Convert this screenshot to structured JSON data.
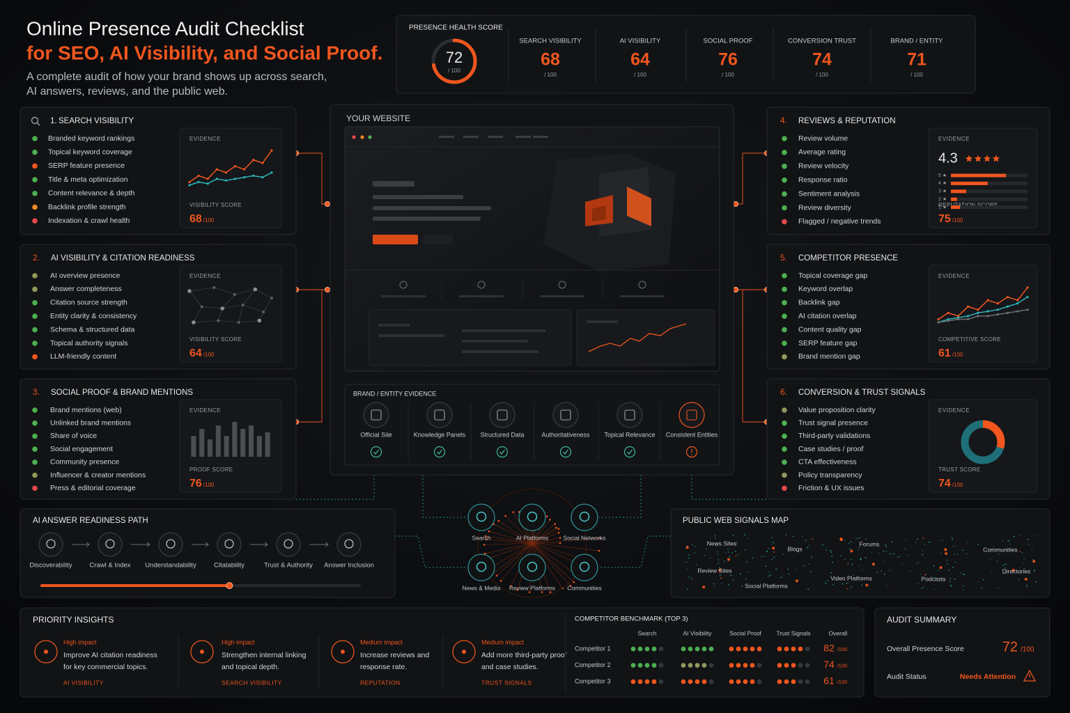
{
  "header": {
    "title_line1": "Online Presence Audit Checklist",
    "title_line2": "for SEO, AI Visibility, and Social Proof.",
    "subtitle_lines": [
      "A complete audit of how your brand shows up across search,",
      "AI answers, reviews, and the public web."
    ]
  },
  "health": {
    "label": "PRESENCE HEALTH SCORE",
    "score": 72,
    "max": {
      "value": 100,
      "label": "/ 100"
    },
    "metrics": [
      {
        "label": "SEARCH VISIBILITY",
        "score": 68,
        "max": "/ 100"
      },
      {
        "label": "AI VISIBILITY",
        "score": 64,
        "max": "/ 100"
      },
      {
        "label": "SOCIAL PROOF",
        "score": 76,
        "max": "/ 100"
      },
      {
        "label": "CONVERSION TRUST",
        "score": 74,
        "max": "/ 100"
      },
      {
        "label": "BRAND / ENTITY",
        "score": 71,
        "max": "/ 100"
      }
    ]
  },
  "sections": [
    {
      "number": "1.",
      "title": "SEARCH VISIBILITY",
      "items": [
        {
          "label": "Branded keyword rankings",
          "color": "#4caf50"
        },
        {
          "label": "Topical keyword coverage",
          "color": "#4caf50"
        },
        {
          "label": "SERP feature presence",
          "color": "#f0561e"
        },
        {
          "label": "Title & meta optimization",
          "color": "#4caf50"
        },
        {
          "label": "Content relevance & depth",
          "color": "#4caf50"
        },
        {
          "label": "Backlink profile strength",
          "color": "#f08a24"
        },
        {
          "label": "Indexation & crawl health",
          "color": "#e5484d"
        }
      ],
      "evidence_label": "EVIDENCE",
      "score_label": "VISIBILITY SCORE",
      "score": 68,
      "score_max": "/100",
      "chart": {
        "type": "line",
        "series": [
          {
            "color": "#f0561e",
            "values": [
              2,
              4,
              3,
              6,
              5,
              7,
              6,
              9,
              8,
              12
            ]
          },
          {
            "color": "#2bb3b8",
            "values": [
              1,
              2,
              1.5,
              3,
              2.5,
              3,
              3.5,
              4,
              3.5,
              5
            ]
          }
        ]
      }
    },
    {
      "number": "2.",
      "title": "AI VISIBILITY & CITATION READINESS",
      "items": [
        {
          "label": "AI overview presence",
          "color": "#8f9a5b"
        },
        {
          "label": "Answer completeness",
          "color": "#8f9a5b"
        },
        {
          "label": "Citation source strength",
          "color": "#4caf50"
        },
        {
          "label": "Entity clarity & consistency",
          "color": "#4caf50"
        },
        {
          "label": "Schema & structured data",
          "color": "#4caf50"
        },
        {
          "label": "Topical authority signals",
          "color": "#4caf50"
        },
        {
          "label": "LLM-friendly content",
          "color": "#f0561e"
        }
      ],
      "evidence_label": "EVIDENCE",
      "score_label": "VISIBILITY SCORE",
      "score": 64,
      "score_max": "/100",
      "chart": {
        "type": "network"
      }
    },
    {
      "number": "3.",
      "title": "SOCIAL PROOF & BRAND MENTIONS",
      "items": [
        {
          "label": "Brand mentions (web)",
          "color": "#4caf50"
        },
        {
          "label": "Unlinked brand mentions",
          "color": "#4caf50"
        },
        {
          "label": "Share of voice",
          "color": "#4caf50"
        },
        {
          "label": "Social engagement",
          "color": "#4caf50"
        },
        {
          "label": "Community presence",
          "color": "#4caf50"
        },
        {
          "label": "Influencer & creator mentions",
          "color": "#8f9a5b"
        },
        {
          "label": "Press & editorial coverage",
          "color": "#e5484d"
        }
      ],
      "evidence_label": "EVIDENCE",
      "score_label": "PROOF SCORE",
      "score": 76,
      "score_max": "/100",
      "chart": {
        "type": "bars",
        "values": [
          3,
          4,
          2.5,
          4.5,
          3,
          5,
          4,
          4.5,
          3,
          3.5
        ]
      }
    },
    {
      "number": "4.",
      "title": "REVIEWS & REPUTATION",
      "items": [
        {
          "label": "Review volume",
          "color": "#4caf50"
        },
        {
          "label": "Average rating",
          "color": "#4caf50"
        },
        {
          "label": "Review velocity",
          "color": "#4caf50"
        },
        {
          "label": "Response ratio",
          "color": "#4caf50"
        },
        {
          "label": "Sentiment analysis",
          "color": "#4caf50"
        },
        {
          "label": "Review diversity",
          "color": "#4caf50"
        },
        {
          "label": "Flagged / negative trends",
          "color": "#e5484d"
        }
      ],
      "evidence_label": "EVIDENCE",
      "score_label": "REPUTATION SCORE",
      "score": 75,
      "score_max": "/100",
      "chart": {
        "type": "rating",
        "rating": 4.3,
        "stars": 4,
        "distribution": [
          {
            "label": "5 ★",
            "value": 0.72
          },
          {
            "label": "4 ★",
            "value": 0.48
          },
          {
            "label": "3 ★",
            "value": 0.2
          },
          {
            "label": "2 ★",
            "value": 0.08
          },
          {
            "label": "1 ★",
            "value": 0.12
          }
        ]
      }
    },
    {
      "number": "5.",
      "title": "COMPETITOR PRESENCE",
      "items": [
        {
          "label": "Topical coverage gap",
          "color": "#4caf50"
        },
        {
          "label": "Keyword overlap",
          "color": "#4caf50"
        },
        {
          "label": "Backlink gap",
          "color": "#4caf50"
        },
        {
          "label": "AI citation overlap",
          "color": "#4caf50"
        },
        {
          "label": "Content quality gap",
          "color": "#4caf50"
        },
        {
          "label": "SERP feature gap",
          "color": "#4caf50"
        },
        {
          "label": "Brand mention gap",
          "color": "#8f9a5b"
        }
      ],
      "evidence_label": "EVIDENCE",
      "score_label": "COMPETITIVE SCORE",
      "score": 61,
      "score_max": "/100",
      "chart": {
        "type": "line",
        "series": [
          {
            "color": "#f0561e",
            "values": [
              2,
              4,
              3,
              6,
              5,
              8,
              7,
              9,
              8,
              12
            ]
          },
          {
            "color": "#2bb3b8",
            "values": [
              1,
              2,
              2.5,
              3,
              4,
              4.5,
              5,
              6,
              7,
              9
            ]
          },
          {
            "color": "#6b7075",
            "values": [
              1,
              1.5,
              2,
              2,
              3,
              3,
              3.5,
              4,
              4.5,
              5
            ]
          }
        ]
      }
    },
    {
      "number": "6.",
      "title": "CONVERSION & TRUST SIGNALS",
      "items": [
        {
          "label": "Value proposition clarity",
          "color": "#8f9a5b"
        },
        {
          "label": "Trust signal presence",
          "color": "#4caf50"
        },
        {
          "label": "Third-party validations",
          "color": "#4caf50"
        },
        {
          "label": "Case studies / proof",
          "color": "#4caf50"
        },
        {
          "label": "CTA effectiveness",
          "color": "#4caf50"
        },
        {
          "label": "Policy transparency",
          "color": "#8f9a5b"
        },
        {
          "label": "Friction & UX issues",
          "color": "#e5484d"
        }
      ],
      "evidence_label": "EVIDENCE",
      "score_label": "TRUST SCORE",
      "score": 74,
      "score_max": "/100",
      "chart": {
        "type": "donut",
        "values": [
          30,
          70
        ],
        "colors": [
          "#f0561e",
          "#1f6f78"
        ]
      }
    }
  ],
  "website": {
    "title": "YOUR WEBSITE",
    "evidence_title": "BRAND / ENTITY EVIDENCE",
    "evidence": [
      {
        "label": "Official Site",
        "status": "ok"
      },
      {
        "label": "Knowledge Panels",
        "status": "ok"
      },
      {
        "label": "Structured Data",
        "status": "ok"
      },
      {
        "label": "Authoritativeness",
        "status": "ok"
      },
      {
        "label": "Topical Relevance",
        "status": "ok"
      },
      {
        "label": "Consistent Entities",
        "status": "warn"
      }
    ]
  },
  "readiness": {
    "title": "AI ANSWER READINESS PATH",
    "steps": [
      "Discoverability",
      "Crawl & Index",
      "Understandability",
      "Citatability",
      "Trust & Authority",
      "Answer Inclusion"
    ],
    "progress": 0.59
  },
  "hub": {
    "nodes": [
      "Search",
      "AI Platforms",
      "Social Networks",
      "News & Media",
      "Review Platforms",
      "Communities"
    ]
  },
  "signals_map": {
    "title": "PUBLIC WEB SIGNALS MAP",
    "labels": [
      "News Sites",
      "Blogs",
      "Forums",
      "Communities",
      "Review Sites",
      "Video Platforms",
      "Podcasts",
      "Directories",
      "Social Platforms"
    ]
  },
  "insights": {
    "title": "PRIORITY INSIGHTS",
    "items": [
      {
        "impact": "High impact",
        "text_lines": [
          "Improve AI citation readiness",
          "for key commercial topics."
        ],
        "category": "AI VISIBILITY"
      },
      {
        "impact": "High impact",
        "text_lines": [
          "Strengthen internal linking",
          "and topical depth."
        ],
        "category": "SEARCH VISIBILITY"
      },
      {
        "impact": "Medium impact",
        "text_lines": [
          "Increase reviews and",
          "response rate."
        ],
        "category": "REPUTATION"
      },
      {
        "impact": "Medium impact",
        "text_lines": [
          "Add more third-party proof",
          "and case studies."
        ],
        "category": "TRUST SIGNALS"
      }
    ]
  },
  "benchmark": {
    "title": "COMPETITOR BENCHMARK (TOP 3)",
    "columns": [
      "Search",
      "AI Visibility",
      "Social Proof",
      "Trust Signals",
      "Overall"
    ],
    "dots_out_of": 5,
    "rows": [
      {
        "name": "Competitor 1",
        "cells": [
          {
            "filled": 4,
            "color": "#4caf50"
          },
          {
            "filled": 5,
            "color": "#4caf50"
          },
          {
            "filled": 5,
            "color": "#f0561e"
          },
          {
            "filled": 4,
            "color": "#f0561e"
          }
        ],
        "overall": 82,
        "max": "/100"
      },
      {
        "name": "Competitor 2",
        "cells": [
          {
            "filled": 4,
            "color": "#4caf50"
          },
          {
            "filled": 4,
            "color": "#8f9a5b"
          },
          {
            "filled": 4,
            "color": "#f0561e"
          },
          {
            "filled": 3,
            "color": "#f0561e"
          }
        ],
        "overall": 74,
        "max": "/100"
      },
      {
        "name": "Competitor 3",
        "cells": [
          {
            "filled": 4,
            "color": "#f0561e"
          },
          {
            "filled": 4,
            "color": "#f0561e"
          },
          {
            "filled": 4,
            "color": "#f0561e"
          },
          {
            "filled": 3,
            "color": "#f0561e"
          }
        ],
        "overall": 61,
        "max": "/100"
      }
    ]
  },
  "summary": {
    "title": "AUDIT SUMMARY",
    "score_label": "Overall Presence Score",
    "score": 72,
    "max": "/100",
    "status_label": "Audit Status",
    "status": "Needs Attention"
  }
}
